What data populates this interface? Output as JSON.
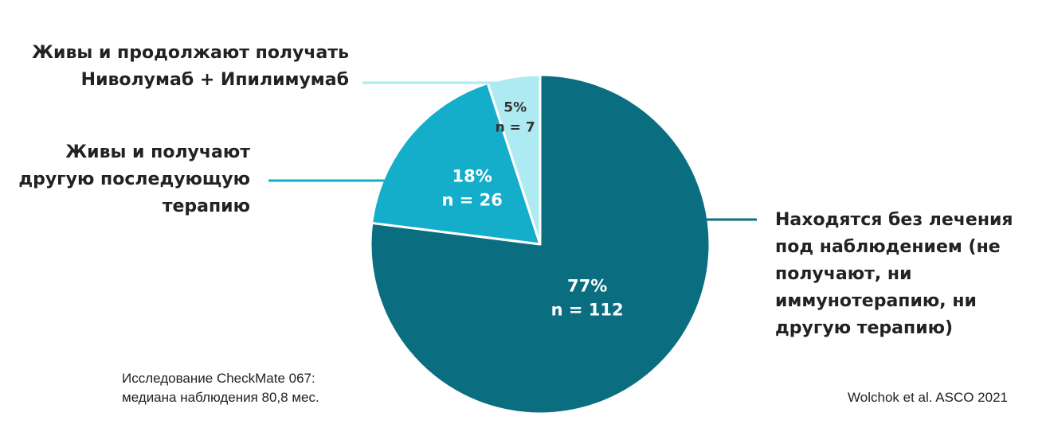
{
  "chart_data": {
    "type": "pie",
    "slices": [
      {
        "value": 77,
        "percent_label": "77%",
        "n_label": "n = 112",
        "color": "#0b6e80",
        "label_color": "#ffffff",
        "callout": [
          "Находятся без лечения",
          "под наблюдением (не",
          "получают, ни",
          "иммунотерапию, ни",
          "другую терапию)"
        ]
      },
      {
        "value": 18,
        "percent_label": "18%",
        "n_label": "n = 26",
        "color": "#14aecb",
        "label_color": "#ffffff",
        "callout": [
          "Живы и получают",
          "другую последующую",
          "терапию"
        ]
      },
      {
        "value": 5,
        "percent_label": "5%",
        "n_label": "n = 7",
        "color": "#aeeaf2",
        "label_color": "#333333",
        "callout": [
          "Живы и продолжают получать",
          "Ниволумаб + Ипилимумаб"
        ]
      }
    ]
  },
  "footnote_left": [
    "Исследование CheckMate 067:",
    "медиана наблюдения 80,8 мес."
  ],
  "footnote_right": "Wolchok et al. ASCO 2021"
}
